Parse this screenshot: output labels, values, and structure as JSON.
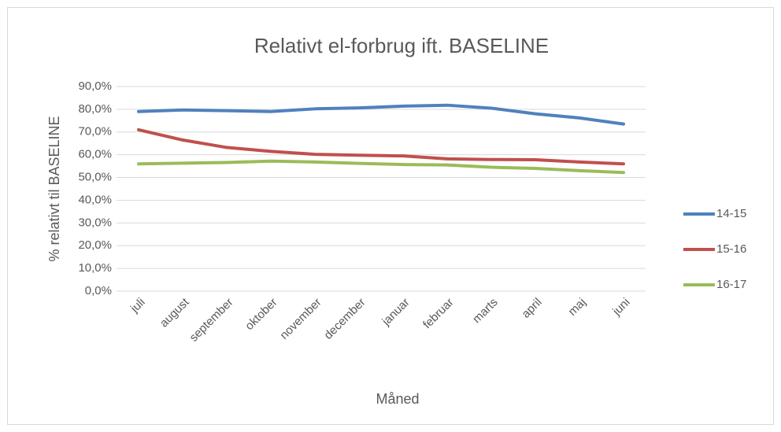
{
  "chart_data": {
    "type": "line",
    "title": "Relativt el-forbrug ift. BASELINE",
    "y_label": "% relativt til BASELINE",
    "x_label": "Måned",
    "categories": [
      "juli",
      "august",
      "september",
      "oktober",
      "november",
      "december",
      "januar",
      "februar",
      "marts",
      "april",
      "maj",
      "juni"
    ],
    "series": [
      {
        "name": "14-15",
        "color": "#4f81bd",
        "values": [
          79,
          79.7,
          79.4,
          79,
          80.2,
          80.6,
          81.4,
          81.8,
          80.5,
          78,
          76.2,
          73.5
        ]
      },
      {
        "name": "15-16",
        "color": "#c0504d",
        "values": [
          71,
          66.5,
          63.2,
          61.5,
          60.2,
          59.8,
          59.5,
          58.2,
          57.9,
          57.8,
          56.8,
          56
        ]
      },
      {
        "name": "16-17",
        "color": "#9bbb59",
        "values": [
          56,
          56.3,
          56.6,
          57.2,
          56.8,
          56.2,
          55.7,
          55.5,
          54.5,
          54,
          53,
          52.2
        ]
      }
    ],
    "ylim": [
      0,
      90
    ],
    "yticks": [
      {
        "value": 0,
        "label": "0,0%"
      },
      {
        "value": 10,
        "label": "10,0%"
      },
      {
        "value": 20,
        "label": "20,0%"
      },
      {
        "value": 30,
        "label": "30,0%"
      },
      {
        "value": 40,
        "label": "40,0%"
      },
      {
        "value": 50,
        "label": "50,0%"
      },
      {
        "value": 60,
        "label": "60,0%"
      },
      {
        "value": 70,
        "label": "70,0%"
      },
      {
        "value": 80,
        "label": "80,0%"
      },
      {
        "value": 90,
        "label": "90,0%"
      }
    ],
    "grid": true,
    "legend": "right"
  }
}
